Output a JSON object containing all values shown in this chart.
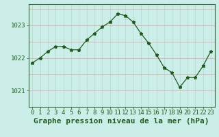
{
  "x": [
    0,
    1,
    2,
    3,
    4,
    5,
    6,
    7,
    8,
    9,
    10,
    11,
    12,
    13,
    14,
    15,
    16,
    17,
    18,
    19,
    20,
    21,
    22,
    23
  ],
  "y": [
    1021.85,
    1022.0,
    1022.2,
    1022.35,
    1022.35,
    1022.25,
    1022.25,
    1022.55,
    1022.75,
    1022.95,
    1023.1,
    1023.35,
    1023.3,
    1023.1,
    1022.75,
    1022.45,
    1022.1,
    1021.7,
    1021.55,
    1021.1,
    1021.4,
    1021.4,
    1021.75,
    1022.2
  ],
  "line_color": "#1e5c1e",
  "marker": "*",
  "marker_size": 3.5,
  "bg_color": "#cceee8",
  "grid_color_v": "#b0d8d0",
  "grid_color_h": "#f0a0a0",
  "xlabel": "Graphe pression niveau de la mer (hPa)",
  "xlabel_fontsize": 8,
  "yticks": [
    1021,
    1022,
    1023
  ],
  "xticks": [
    0,
    1,
    2,
    3,
    4,
    5,
    6,
    7,
    8,
    9,
    10,
    11,
    12,
    13,
    14,
    15,
    16,
    17,
    18,
    19,
    20,
    21,
    22,
    23
  ],
  "ylim": [
    1020.5,
    1023.65
  ],
  "xlim": [
    -0.5,
    23.5
  ],
  "tick_fontsize": 6.5,
  "spine_color": "#336633"
}
